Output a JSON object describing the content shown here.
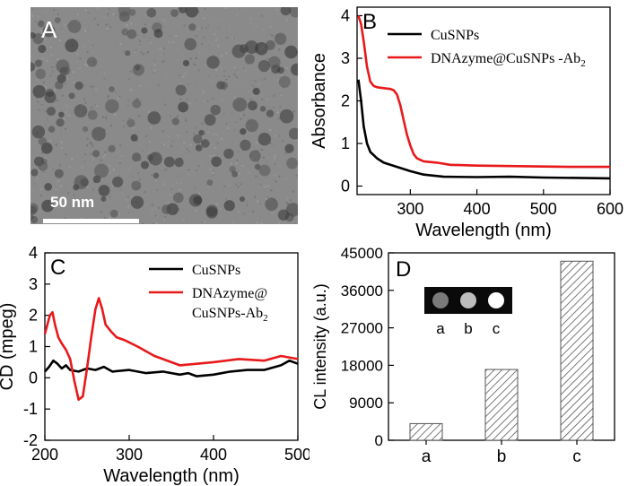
{
  "panelA": {
    "letter": "A",
    "scale_label": "50 nm"
  },
  "chart_data": [
    {
      "panel": "B",
      "type": "line",
      "xlabel": "Wavelength (nm)",
      "ylabel": "Absorbance",
      "xlim": [
        220,
        600
      ],
      "ylim": [
        -0.2,
        4.2
      ],
      "xticks": [
        300,
        400,
        500,
        600
      ],
      "yticks": [
        0,
        1,
        2,
        3,
        4
      ],
      "legend_position": "top-right",
      "series": [
        {
          "name": "CuSNPs",
          "color": "#000000",
          "x": [
            222,
            226,
            230,
            235,
            240,
            250,
            260,
            280,
            300,
            320,
            350,
            400,
            450,
            500,
            600
          ],
          "y": [
            2.5,
            2.0,
            1.4,
            1.0,
            0.8,
            0.65,
            0.55,
            0.45,
            0.35,
            0.27,
            0.22,
            0.21,
            0.22,
            0.2,
            0.18
          ]
        },
        {
          "name": "DNAzyme@CuSNPs -Ab2",
          "color": "#e8191b",
          "x": [
            222,
            226,
            230,
            235,
            240,
            245,
            250,
            260,
            270,
            275,
            280,
            285,
            290,
            295,
            300,
            305,
            310,
            320,
            340,
            360,
            400,
            450,
            500,
            550,
            600
          ],
          "y": [
            4.0,
            3.8,
            3.4,
            2.8,
            2.45,
            2.35,
            2.32,
            2.3,
            2.28,
            2.25,
            2.15,
            1.9,
            1.55,
            1.2,
            0.95,
            0.75,
            0.65,
            0.58,
            0.55,
            0.5,
            0.48,
            0.47,
            0.46,
            0.45,
            0.45
          ]
        }
      ]
    },
    {
      "panel": "C",
      "type": "line",
      "xlabel": "Wavelength (nm)",
      "ylabel": "CD (mpeg)",
      "xlim": [
        200,
        500
      ],
      "ylim": [
        -2,
        4
      ],
      "xticks": [
        200,
        300,
        400,
        500
      ],
      "yticks": [
        -2,
        -1,
        0,
        1,
        2,
        3,
        4
      ],
      "legend_position": "top-right",
      "series": [
        {
          "name": "CuSNPs",
          "color": "#000000",
          "x": [
            200,
            205,
            210,
            215,
            220,
            225,
            230,
            240,
            250,
            260,
            270,
            280,
            300,
            320,
            340,
            360,
            370,
            380,
            400,
            420,
            440,
            460,
            480,
            490,
            500
          ],
          "y": [
            0.2,
            0.35,
            0.55,
            0.45,
            0.3,
            0.4,
            0.25,
            0.2,
            0.3,
            0.25,
            0.35,
            0.2,
            0.25,
            0.15,
            0.2,
            0.1,
            0.15,
            0.05,
            0.1,
            0.2,
            0.25,
            0.25,
            0.4,
            0.55,
            0.45
          ]
        },
        {
          "name": "DNAzyme@ CuSNPs-Ab2",
          "color": "#e8191b",
          "x": [
            200,
            203,
            206,
            209,
            212,
            216,
            220,
            225,
            230,
            235,
            240,
            245,
            250,
            255,
            260,
            264,
            268,
            272,
            278,
            285,
            295,
            310,
            330,
            350,
            360,
            380,
            400,
            430,
            460,
            480,
            500
          ],
          "y": [
            1.4,
            1.7,
            2.0,
            2.1,
            1.7,
            1.3,
            1.1,
            0.9,
            0.6,
            -0.1,
            -0.7,
            -0.6,
            0.3,
            1.3,
            2.2,
            2.55,
            2.2,
            1.7,
            1.5,
            1.3,
            1.2,
            1.0,
            0.7,
            0.5,
            0.4,
            0.45,
            0.5,
            0.6,
            0.55,
            0.7,
            0.6
          ]
        }
      ]
    },
    {
      "panel": "D",
      "type": "bar",
      "ylabel": "CL intensity (a.u.)",
      "categories": [
        "a",
        "b",
        "c"
      ],
      "values": [
        4000,
        17000,
        43000
      ],
      "ylim": [
        0,
        45000
      ],
      "yticks": [
        0,
        9000,
        18000,
        27000,
        36000,
        45000
      ],
      "inset_labels": [
        "a",
        "b",
        "c"
      ]
    }
  ]
}
